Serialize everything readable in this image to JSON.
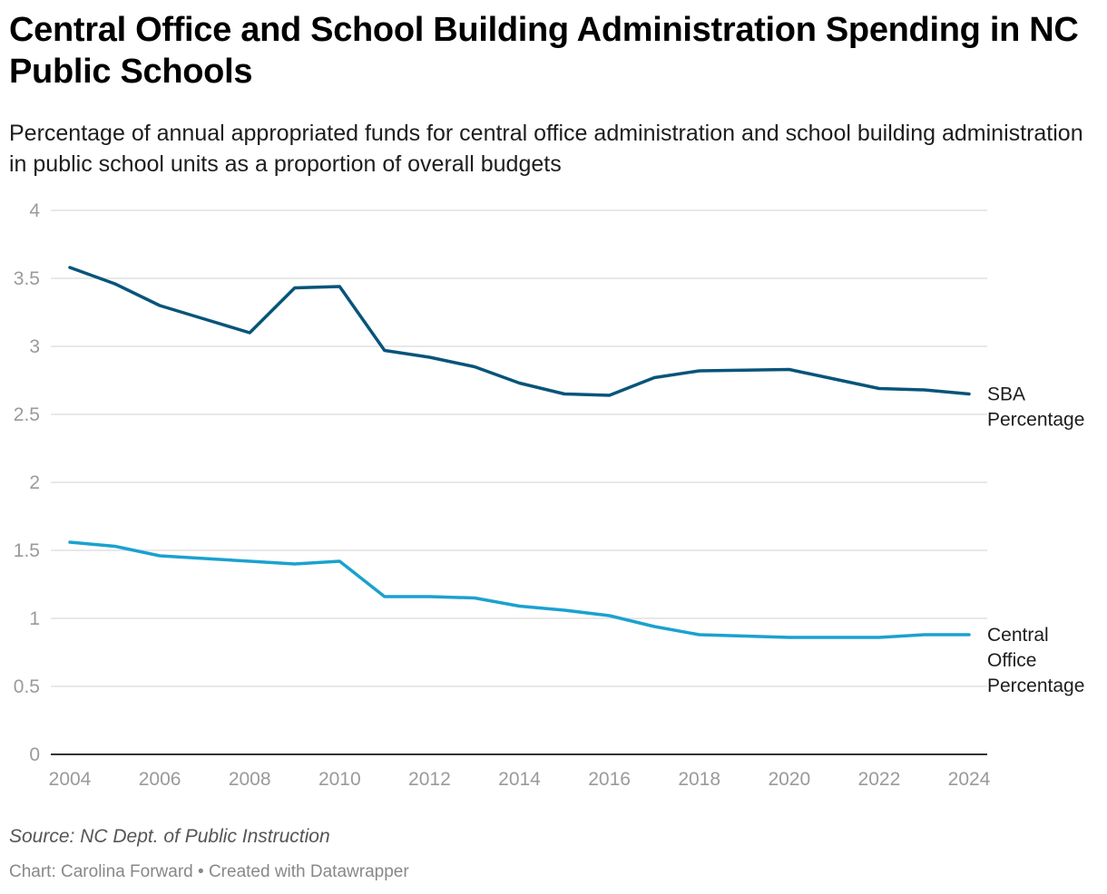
{
  "header": {
    "title": "Central Office and School Building Administration Spending in NC Public Schools",
    "subtitle": "Percentage of annual appropriated funds for central office administration and school building administration in public school units as a proportion of overall budgets"
  },
  "footer": {
    "source": "Source: NC Dept. of Public Instruction",
    "credit": "Chart: Carolina Forward • Created with Datawrapper"
  },
  "chart_data": {
    "type": "line",
    "title": "Central Office and School Building Administration Spending in NC Public Schools",
    "subtitle": "Percentage of annual appropriated funds for central office administration and school building administration in public school units as a proportion of overall budgets",
    "xlabel": "",
    "ylabel": "",
    "x": [
      2004,
      2005,
      2006,
      2007,
      2008,
      2009,
      2010,
      2011,
      2012,
      2013,
      2014,
      2015,
      2016,
      2017,
      2018,
      2019,
      2020,
      2021,
      2022,
      2023,
      2024
    ],
    "xlim": [
      2004,
      2024
    ],
    "ylim": [
      0,
      4
    ],
    "x_ticks": [
      "2004",
      "2006",
      "2008",
      "2010",
      "2012",
      "2014",
      "2016",
      "2018",
      "2020",
      "2022",
      "2024"
    ],
    "y_ticks": [
      "0",
      "0.5",
      "1",
      "1.5",
      "2",
      "2.5",
      "3",
      "3.5",
      "4"
    ],
    "grid": true,
    "legend": "direct labels at right end of lines",
    "series": [
      {
        "name": "SBA Percentage",
        "label_lines": [
          "SBA",
          "Percentage"
        ],
        "color": "#08547a",
        "values": [
          3.58,
          3.46,
          3.3,
          3.2,
          3.1,
          3.43,
          3.44,
          2.97,
          2.92,
          2.85,
          2.73,
          2.65,
          2.64,
          2.77,
          2.82,
          2.825,
          2.83,
          2.76,
          2.69,
          2.68,
          2.65
        ]
      },
      {
        "name": "Central Office Percentage",
        "label_lines": [
          "Central",
          "Office",
          "Percentage"
        ],
        "color": "#1ba1cf",
        "values": [
          1.56,
          1.53,
          1.46,
          1.44,
          1.42,
          1.4,
          1.42,
          1.16,
          1.16,
          1.15,
          1.09,
          1.06,
          1.02,
          0.94,
          0.88,
          0.87,
          0.86,
          0.86,
          0.86,
          0.88,
          0.88
        ]
      }
    ]
  }
}
